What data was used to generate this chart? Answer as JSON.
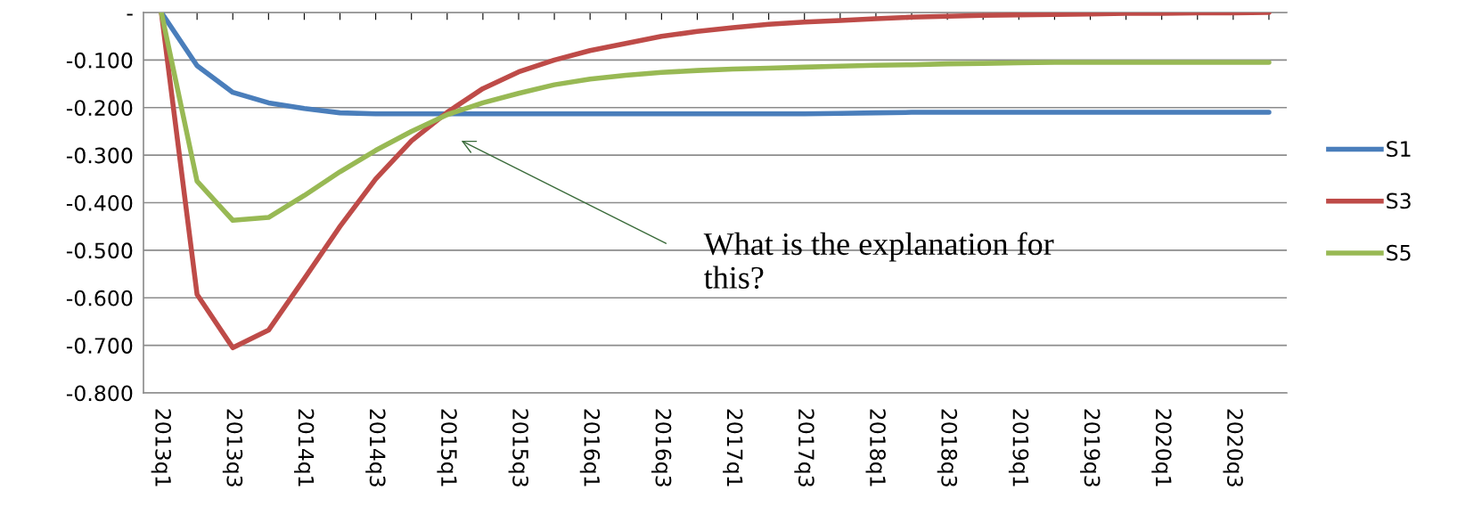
{
  "chart_data": {
    "type": "line",
    "categories": [
      "2013q1",
      null,
      "2013q3",
      null,
      "2014q1",
      null,
      "2014q3",
      null,
      "2015q1",
      null,
      "2015q3",
      null,
      "2016q1",
      null,
      "2016q3",
      null,
      "2017q1",
      null,
      "2017q3",
      null,
      "2018q1",
      null,
      "2018q3",
      null,
      "2019q1",
      null,
      "2019q3",
      null,
      "2020q1",
      null,
      "2020q3",
      null
    ],
    "series": [
      {
        "name": "S1",
        "color": "#4a7ebb",
        "values": [
          0,
          -0.112,
          -0.168,
          -0.19,
          -0.202,
          -0.211,
          -0.213,
          -0.213,
          -0.213,
          -0.213,
          -0.213,
          -0.213,
          -0.213,
          -0.213,
          -0.213,
          -0.213,
          -0.213,
          -0.213,
          -0.213,
          -0.212,
          -0.211,
          -0.21,
          -0.21,
          -0.21,
          -0.21,
          -0.21,
          -0.21,
          -0.21,
          -0.21,
          -0.21,
          -0.21,
          -0.21
        ]
      },
      {
        "name": "S3",
        "color": "#be4b48",
        "values": [
          0,
          -0.593,
          -0.705,
          -0.668,
          -0.56,
          -0.45,
          -0.35,
          -0.27,
          -0.21,
          -0.16,
          -0.125,
          -0.1,
          -0.08,
          -0.065,
          -0.05,
          -0.04,
          -0.032,
          -0.025,
          -0.02,
          -0.017,
          -0.013,
          -0.01,
          -0.008,
          -0.006,
          -0.005,
          -0.004,
          -0.003,
          -0.002,
          -0.002,
          -0.001,
          -0.001,
          0
        ]
      },
      {
        "name": "S5",
        "color": "#98b954",
        "values": [
          0,
          -0.355,
          -0.437,
          -0.431,
          -0.385,
          -0.335,
          -0.29,
          -0.25,
          -0.215,
          -0.19,
          -0.17,
          -0.152,
          -0.14,
          -0.132,
          -0.126,
          -0.122,
          -0.119,
          -0.117,
          -0.115,
          -0.113,
          -0.111,
          -0.11,
          -0.108,
          -0.107,
          -0.106,
          -0.105,
          -0.105,
          -0.105,
          -0.105,
          -0.105,
          -0.105,
          -0.105
        ]
      }
    ],
    "ylim": [
      -0.8,
      0
    ],
    "yticks": [
      {
        "value": 0,
        "label": "-"
      },
      {
        "value": -0.1,
        "label": "-0.100"
      },
      {
        "value": -0.2,
        "label": "-0.200"
      },
      {
        "value": -0.3,
        "label": "-0.300"
      },
      {
        "value": -0.4,
        "label": "-0.400"
      },
      {
        "value": -0.5,
        "label": "-0.500"
      },
      {
        "value": -0.6,
        "label": "-0.600"
      },
      {
        "value": -0.7,
        "label": "-0.700"
      },
      {
        "value": -0.8,
        "label": "-0.800"
      }
    ],
    "grid": "y",
    "legend": "right",
    "annotations": [
      "What is the explanation for\nthis?"
    ]
  }
}
